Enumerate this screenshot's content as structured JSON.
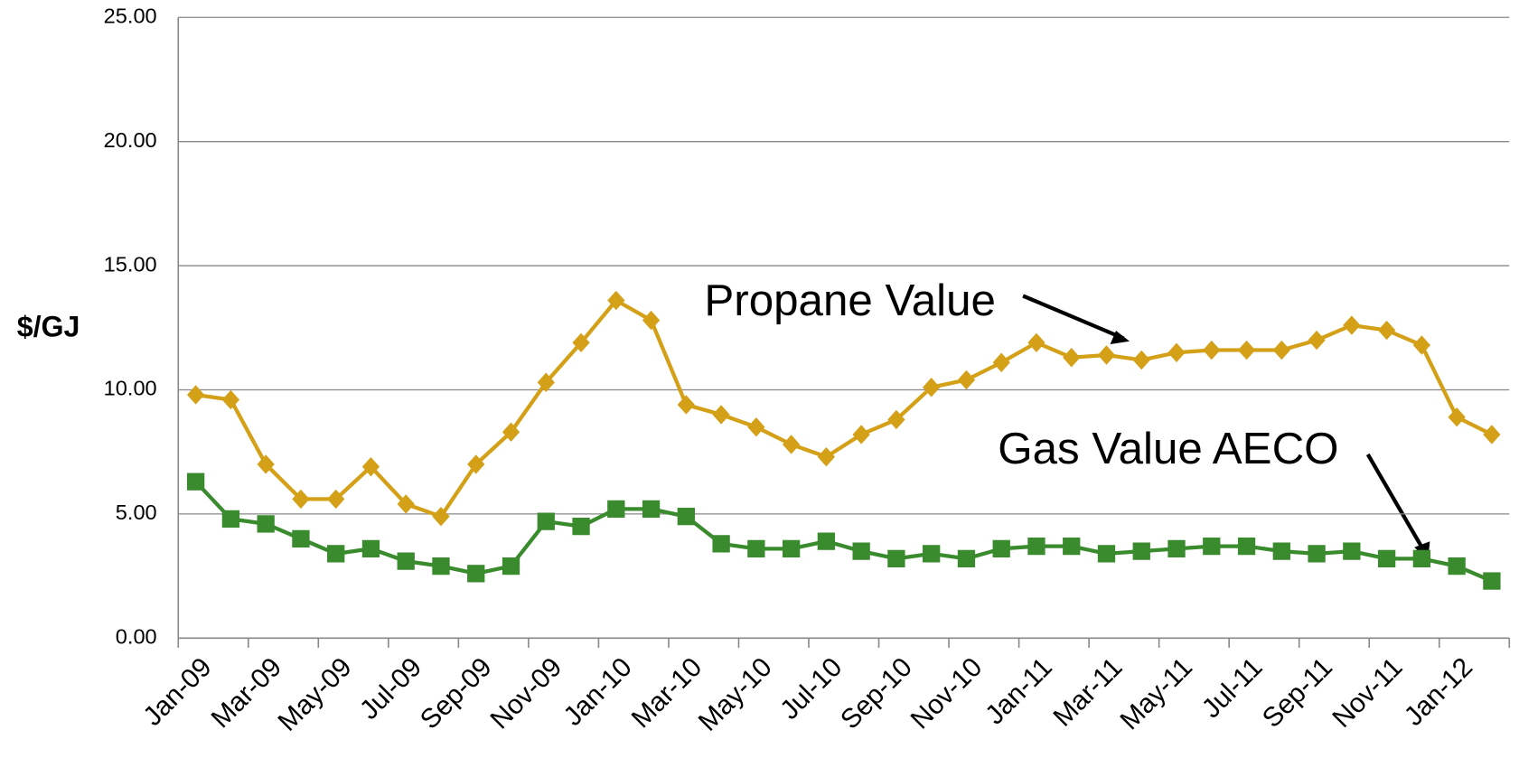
{
  "chart_data": {
    "type": "line",
    "ylabel": "$/GJ",
    "categories": [
      "Jan-09",
      null,
      "Mar-09",
      null,
      "May-09",
      null,
      "Jul-09",
      null,
      "Sep-09",
      null,
      "Nov-09",
      null,
      "Jan-10",
      null,
      "Mar-10",
      null,
      "May-10",
      null,
      "Jul-10",
      null,
      "Sep-10",
      null,
      "Nov-10",
      null,
      "Jan-11",
      null,
      "Mar-11",
      null,
      "May-11",
      null,
      "Jul-11",
      null,
      "Sep-11",
      null,
      "Nov-11",
      null,
      "Jan-12",
      null
    ],
    "series": [
      {
        "name": "Propane Value",
        "color": "#d4a017",
        "marker": "diamond",
        "values": [
          9.8,
          9.6,
          7.0,
          5.6,
          5.6,
          6.9,
          5.4,
          4.9,
          7.0,
          8.3,
          10.3,
          11.9,
          13.6,
          12.8,
          9.4,
          9.0,
          8.5,
          7.8,
          7.3,
          8.2,
          8.8,
          10.1,
          10.4,
          11.1,
          11.9,
          11.3,
          11.4,
          11.2,
          11.5,
          11.6,
          11.6,
          11.6,
          12.0,
          12.6,
          12.4,
          11.8,
          8.9,
          8.2
        ]
      },
      {
        "name": "Gas Value AECO",
        "color": "#3a8a2e",
        "marker": "square",
        "values": [
          6.3,
          4.8,
          4.6,
          4.0,
          3.4,
          3.6,
          3.1,
          2.9,
          2.6,
          2.9,
          4.7,
          4.5,
          5.2,
          5.2,
          4.9,
          3.8,
          3.6,
          3.6,
          3.9,
          3.5,
          3.2,
          3.4,
          3.2,
          3.6,
          3.7,
          3.7,
          3.4,
          3.5,
          3.6,
          3.7,
          3.7,
          3.5,
          3.4,
          3.5,
          3.2,
          3.2,
          2.9,
          2.3
        ]
      }
    ],
    "ylim": [
      0,
      25
    ],
    "yticks": [
      {
        "value": 0,
        "label": "0.00"
      },
      {
        "value": 5,
        "label": "5.00"
      },
      {
        "value": 10,
        "label": "10.00"
      },
      {
        "value": 15,
        "label": "15.00"
      },
      {
        "value": 20,
        "label": "20.00"
      },
      {
        "value": 25,
        "label": "25.00"
      }
    ],
    "grid": true
  }
}
